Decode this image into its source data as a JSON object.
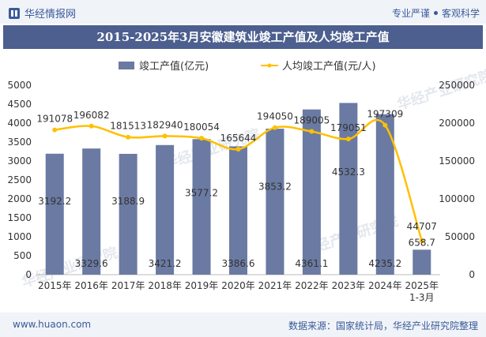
{
  "header": {
    "brand": "华经情报网",
    "tag1": "专业严谨",
    "tag2": "客观科学"
  },
  "footer": {
    "website": "www.huaon.com",
    "source": "数据来源：国家统计局，华经产业研究院整理"
  },
  "colors": {
    "bar": "#6a7aa2",
    "line": "#ffc000",
    "title_bg": "#4c5f8f",
    "brand": "#3a5a98"
  },
  "chart_data": {
    "type": "bar",
    "title": "2015-2025年3月安徽建筑业竣工产值及人均竣工产值",
    "categories": [
      "2015年",
      "2016年",
      "2017年",
      "2018年",
      "2019年",
      "2020年",
      "2021年",
      "2022年",
      "2023年",
      "2024年",
      "2025年\n1-3月"
    ],
    "series": [
      {
        "name": "竣工产值(亿元)",
        "type": "bar",
        "axis": "left",
        "values": [
          3192.2,
          3329.6,
          3188.9,
          3421.2,
          3577.2,
          3386.6,
          3853.2,
          4361.1,
          4532.3,
          4235.2,
          658.7
        ],
        "labels": [
          "3192.2",
          "3329.6",
          "3188.9",
          "3421.2",
          "3577.2",
          "3386.6",
          "3853.2",
          "4361.1",
          "4532.3",
          "4235.2",
          "658.7"
        ]
      },
      {
        "name": "人均竣工产值(元/人)",
        "type": "line",
        "axis": "right",
        "values": [
          191078,
          196082,
          181513,
          182940,
          180054,
          165644,
          194050,
          189005,
          179051,
          197309,
          44707
        ],
        "labels": [
          "191078",
          "196082",
          "181513",
          "182940",
          "180054",
          "165644",
          "194050",
          "189005",
          "179051",
          "197309",
          "44707"
        ]
      }
    ],
    "ylim_left": [
      0,
      5000
    ],
    "yticks_left": [
      0,
      500,
      1000,
      1500,
      2000,
      2500,
      3000,
      3500,
      4000,
      4500,
      5000
    ],
    "ylim_right": [
      0,
      250000
    ],
    "yticks_right": [
      0,
      50000,
      100000,
      150000,
      200000,
      250000
    ],
    "grid": false,
    "legend_position": "top-center",
    "watermark": "华经产业研究院"
  }
}
